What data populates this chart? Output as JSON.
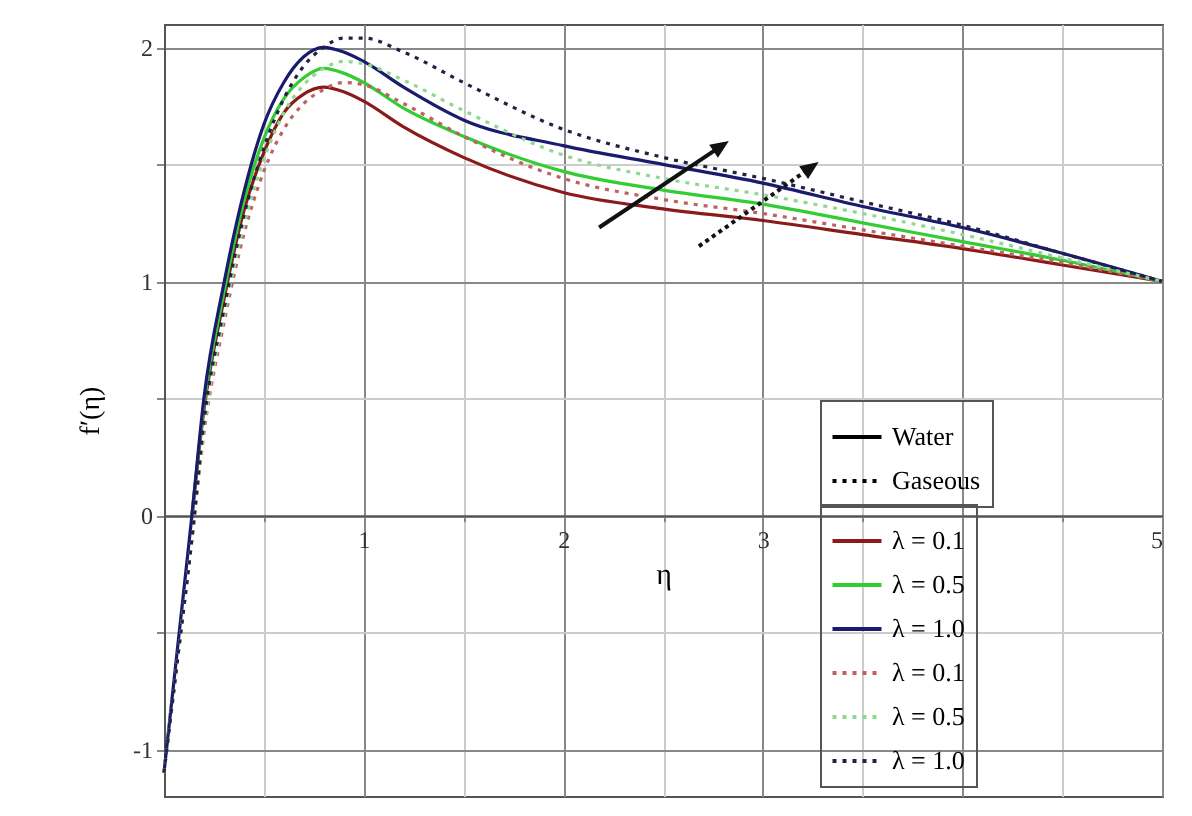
{
  "chart_data": {
    "type": "line",
    "xlabel": "η",
    "ylabel": "f′(η)",
    "x": [
      0,
      0.07,
      0.14,
      0.2,
      0.3,
      0.4,
      0.5,
      0.6,
      0.7,
      0.8,
      0.9,
      1,
      1.2,
      1.5,
      2,
      2.5,
      3,
      3.5,
      4,
      4.5,
      5
    ],
    "series": [
      {
        "name": "λ = 0.1",
        "color": "#8b1a1a",
        "line_style": "solid",
        "values": [
          null,
          null,
          0,
          0.45,
          0.92,
          1.3,
          1.55,
          1.72,
          1.8,
          1.83,
          1.81,
          1.77,
          1.66,
          1.53,
          1.38,
          1.31,
          1.26,
          1.2,
          1.14,
          1.07,
          1.0
        ]
      },
      {
        "name": "λ = 0.5",
        "color": "#33cc33",
        "line_style": "solid",
        "values": [
          null,
          null,
          0,
          0.47,
          0.95,
          1.34,
          1.61,
          1.78,
          1.87,
          1.91,
          1.89,
          1.85,
          1.74,
          1.62,
          1.47,
          1.39,
          1.33,
          1.25,
          1.17,
          1.09,
          1.0
        ]
      },
      {
        "name": "λ = 1.0",
        "color": "#1a1a6e",
        "line_style": "solid",
        "values": [
          -1.1,
          -0.55,
          0,
          0.5,
          0.99,
          1.38,
          1.67,
          1.85,
          1.96,
          2.0,
          1.98,
          1.94,
          1.83,
          1.69,
          1.58,
          1.5,
          1.42,
          1.32,
          1.23,
          1.12,
          1.0
        ]
      },
      {
        "name": "λ = 0.1",
        "color": "#c06060",
        "line_style": "dotted",
        "values": [
          -1.1,
          -0.6,
          -0.1,
          0.35,
          0.82,
          1.2,
          1.47,
          1.65,
          1.76,
          1.82,
          1.85,
          1.84,
          1.76,
          1.62,
          1.44,
          1.35,
          1.29,
          1.22,
          1.15,
          1.08,
          1.0
        ]
      },
      {
        "name": "λ = 0.5",
        "color": "#90d890",
        "line_style": "dotted",
        "values": [
          -1.1,
          -0.6,
          -0.1,
          0.37,
          0.85,
          1.24,
          1.52,
          1.72,
          1.84,
          1.91,
          1.94,
          1.93,
          1.86,
          1.73,
          1.54,
          1.44,
          1.37,
          1.29,
          1.2,
          1.1,
          1.0
        ]
      },
      {
        "name": "λ = 1.0",
        "color": "#222244",
        "line_style": "dotted",
        "values": [
          -1.1,
          -0.6,
          -0.1,
          0.4,
          0.88,
          1.28,
          1.57,
          1.78,
          1.92,
          2.0,
          2.04,
          2.04,
          1.98,
          1.85,
          1.65,
          1.53,
          1.44,
          1.34,
          1.24,
          1.12,
          1.0
        ]
      }
    ],
    "annotations": [
      "Water",
      "Gaseous"
    ],
    "xlim": [
      0,
      5
    ],
    "ylim": [
      -1.2,
      2.1
    ],
    "xticks": [
      {
        "value": 0.5,
        "label": null
      },
      1,
      {
        "value": 1.5,
        "label": null
      },
      2,
      {
        "value": 2.5,
        "label": null
      },
      3,
      {
        "value": 3.5,
        "label": null
      },
      {
        "value": 4,
        "label": null
      },
      {
        "value": 4.5,
        "label": null
      },
      5
    ],
    "yticks": [
      -1,
      {
        "value": -0.5,
        "label": null
      },
      0,
      {
        "value": 0.5,
        "label": null
      },
      1,
      {
        "value": 1.5,
        "label": null
      },
      2
    ],
    "grid": true,
    "legend": "bottom right"
  }
}
